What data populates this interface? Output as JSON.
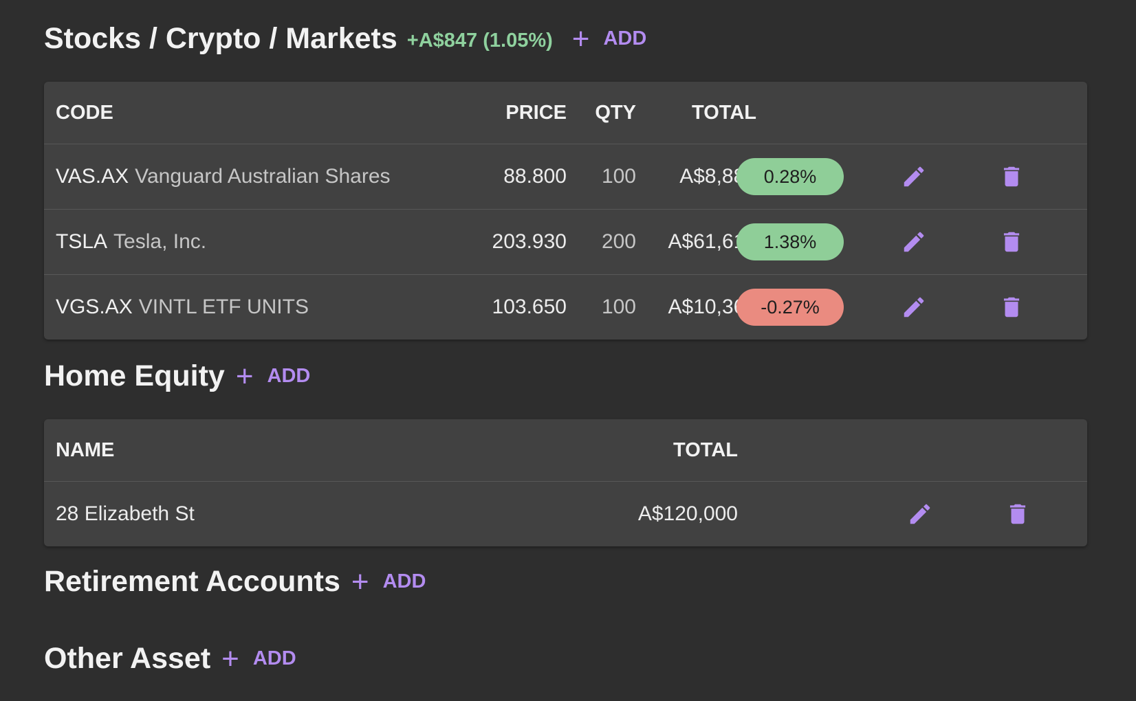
{
  "accent_color": "#b38cf0",
  "positive_color": "#8fce98",
  "negative_color": "#ea8b80",
  "stocks": {
    "title": "Stocks / Crypto / Markets",
    "gain": "+A$847 (1.05%)",
    "add_label": "ADD",
    "headers": {
      "code": "CODE",
      "price": "PRICE",
      "qty": "QTY",
      "total": "TOTAL"
    },
    "rows": [
      {
        "code": "VAS.AX",
        "name": "Vanguard Australian Shares",
        "price": "88.800",
        "qty": "100",
        "total": "A$8,880",
        "change": "0.28%",
        "change_sign": "positive"
      },
      {
        "code": "TSLA",
        "name": "Tesla, Inc.",
        "price": "203.930",
        "qty": "200",
        "total": "A$61,618",
        "change": "1.38%",
        "change_sign": "positive"
      },
      {
        "code": "VGS.AX",
        "name": "VINTL ETF UNITS",
        "price": "103.650",
        "qty": "100",
        "total": "A$10,365",
        "change": "-0.27%",
        "change_sign": "negative"
      }
    ]
  },
  "home_equity": {
    "title": "Home Equity",
    "add_label": "ADD",
    "headers": {
      "name": "NAME",
      "total": "TOTAL"
    },
    "rows": [
      {
        "name": "28 Elizabeth St",
        "total": "A$120,000"
      }
    ]
  },
  "retirement": {
    "title": "Retirement Accounts",
    "add_label": "ADD"
  },
  "other": {
    "title": "Other Asset",
    "add_label": "ADD"
  },
  "icons": {
    "edit": "pencil-icon",
    "delete": "trash-icon",
    "add": "plus-icon"
  }
}
